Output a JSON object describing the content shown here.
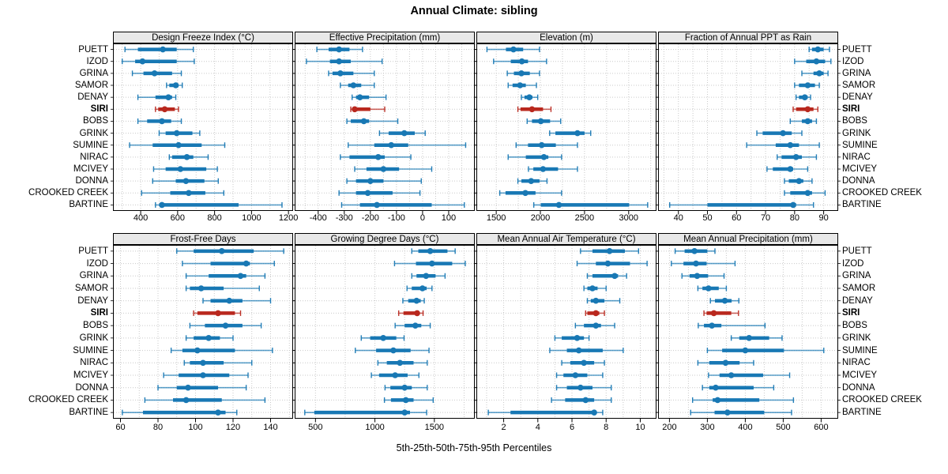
{
  "title": "Annual Climate: sibling",
  "caption": "5th-25th-50th-75th-95th Percentiles",
  "colors": {
    "series_blue": "#1878b4",
    "highlight_red": "#b9281e",
    "grid": "#c9c9c9",
    "strip_bg": "#e8e8e8",
    "border": "#000000"
  },
  "chart_data": {
    "type": "scatter",
    "subtype": "horizontal-percentile-intervals",
    "note": "5th-25th-50th-75th-95th percentile intervals per site; thick bar = 25th-75th, dot = median",
    "legend_position": "none",
    "grid": "dotted",
    "sites": [
      "PUETT",
      "IZOD",
      "GRINA",
      "SAMOR",
      "DENAY",
      "SIRI",
      "BOBS",
      "GRINK",
      "SUMINE",
      "NIRAC",
      "MCIVEY",
      "DONNA",
      "CROOKED CREEK",
      "BARTINE"
    ],
    "highlight_site": "SIRI",
    "panels": [
      {
        "title": "Design Freeze Index (°C)",
        "grid_row": 0,
        "grid_col": 0,
        "xlim": [
          250,
          1225
        ],
        "ticks": [
          400,
          600,
          800,
          1000,
          1200
        ],
        "minor_step": 100,
        "percentiles": [
          [
            315,
            385,
            520,
            595,
            685
          ],
          [
            300,
            370,
            410,
            595,
            690
          ],
          [
            355,
            415,
            475,
            570,
            620
          ],
          [
            540,
            555,
            590,
            605,
            625
          ],
          [
            385,
            480,
            550,
            570,
            590
          ],
          [
            480,
            495,
            530,
            585,
            605
          ],
          [
            385,
            435,
            515,
            565,
            620
          ],
          [
            500,
            535,
            595,
            680,
            720
          ],
          [
            340,
            465,
            605,
            730,
            855
          ],
          [
            555,
            570,
            650,
            685,
            765
          ],
          [
            470,
            535,
            615,
            755,
            815
          ],
          [
            465,
            590,
            645,
            745,
            820
          ],
          [
            405,
            560,
            660,
            750,
            850
          ],
          [
            480,
            505,
            515,
            930,
            1165
          ]
        ]
      },
      {
        "title": "Effective Precipitation (mm)",
        "grid_row": 0,
        "grid_col": 1,
        "xlim": [
          -490,
          200
        ],
        "ticks": [
          -400,
          -300,
          -200,
          -100,
          0,
          100
        ],
        "minor_step": 50,
        "percentiles": [
          [
            -405,
            -360,
            -320,
            -280,
            -230
          ],
          [
            -445,
            -355,
            -320,
            -275,
            -155
          ],
          [
            -360,
            -345,
            -315,
            -265,
            -185
          ],
          [
            -315,
            -285,
            -265,
            -235,
            -185
          ],
          [
            -270,
            -255,
            -240,
            -205,
            -140
          ],
          [
            -275,
            -265,
            -260,
            -200,
            -145
          ],
          [
            -290,
            -275,
            -225,
            -205,
            -95
          ],
          [
            -165,
            -130,
            -70,
            -30,
            10
          ],
          [
            -285,
            -185,
            -120,
            -55,
            165
          ],
          [
            -315,
            -280,
            -170,
            -145,
            -45
          ],
          [
            -260,
            -215,
            -150,
            -90,
            35
          ],
          [
            -290,
            -255,
            -200,
            -150,
            -5
          ],
          [
            -320,
            -255,
            -210,
            -115,
            -10
          ],
          [
            -310,
            -240,
            -175,
            35,
            160
          ]
        ]
      },
      {
        "title": "Elevation (m)",
        "grid_row": 0,
        "grid_col": 2,
        "xlim": [
          1275,
          3315
        ],
        "ticks": [
          1500,
          2000,
          2500,
          3000
        ],
        "minor_step": 250,
        "percentiles": [
          [
            1395,
            1610,
            1695,
            1805,
            1990
          ],
          [
            1470,
            1665,
            1790,
            1860,
            2070
          ],
          [
            1625,
            1700,
            1785,
            1880,
            1990
          ],
          [
            1635,
            1685,
            1770,
            1835,
            1955
          ],
          [
            1785,
            1820,
            1875,
            1910,
            1970
          ],
          [
            1745,
            1775,
            1905,
            2030,
            2120
          ],
          [
            1850,
            1905,
            2005,
            2110,
            2230
          ],
          [
            2105,
            2170,
            2420,
            2500,
            2570
          ],
          [
            1725,
            1860,
            2015,
            2175,
            2420
          ],
          [
            1635,
            1835,
            2040,
            2090,
            2240
          ],
          [
            1865,
            1920,
            2030,
            2200,
            2420
          ],
          [
            1745,
            1785,
            1895,
            1990,
            2075
          ],
          [
            1540,
            1605,
            1830,
            1945,
            2240
          ],
          [
            1925,
            2005,
            2210,
            3005,
            3215
          ]
        ]
      },
      {
        "title": "Fraction of Annual PPT as Rain",
        "grid_row": 0,
        "grid_col": 3,
        "xlim": [
          33,
          95
        ],
        "ticks": [
          40,
          50,
          60,
          70,
          80,
          90
        ],
        "minor_step": 5,
        "percentiles": [
          [
            85,
            86,
            88,
            90,
            92
          ],
          [
            80,
            84,
            87.5,
            90.5,
            92.5
          ],
          [
            82.5,
            86.5,
            88.5,
            90,
            91.5
          ],
          [
            80,
            81.5,
            84.5,
            87,
            88.5
          ],
          [
            80.5,
            81.5,
            83.5,
            84.5,
            85.5
          ],
          [
            79.5,
            80.5,
            84.5,
            86.5,
            88
          ],
          [
            78.5,
            82.5,
            84.5,
            86,
            87.5
          ],
          [
            67,
            69,
            76,
            79,
            82.5
          ],
          [
            63.5,
            73.5,
            78.5,
            81.5,
            88.5
          ],
          [
            74,
            75.5,
            80.5,
            82.5,
            87.5
          ],
          [
            70.5,
            72.5,
            78.5,
            79.5,
            84.5
          ],
          [
            76.5,
            78,
            81.5,
            83,
            86
          ],
          [
            76.5,
            78.5,
            84.5,
            86,
            90.5
          ],
          [
            37,
            50,
            79.5,
            80.5,
            86.5
          ]
        ]
      },
      {
        "title": "Frost-Free Days",
        "grid_row": 1,
        "grid_col": 0,
        "xlim": [
          56,
          152
        ],
        "ticks": [
          60,
          80,
          100,
          120,
          140
        ],
        "minor_step": 10,
        "percentiles": [
          [
            90,
            99,
            114,
            131,
            147
          ],
          [
            93,
            108,
            127,
            129,
            142
          ],
          [
            95,
            107,
            124,
            127,
            137
          ],
          [
            95,
            97,
            103,
            115,
            134
          ],
          [
            104,
            108,
            118,
            125,
            140
          ],
          [
            99,
            101,
            112,
            121,
            124
          ],
          [
            97,
            105,
            116,
            125,
            135
          ],
          [
            95,
            99,
            107,
            113,
            120
          ],
          [
            87,
            93,
            101,
            121,
            141
          ],
          [
            94,
            97,
            104,
            115,
            130
          ],
          [
            83,
            91,
            104,
            118,
            128
          ],
          [
            80,
            90,
            96,
            112,
            127
          ],
          [
            73,
            88,
            95,
            114,
            137
          ],
          [
            61,
            72,
            112,
            116,
            122
          ]
        ]
      },
      {
        "title": "Growing Degree Days (°C)",
        "grid_row": 1,
        "grid_col": 1,
        "xlim": [
          325,
          1840
        ],
        "ticks": [
          500,
          1000,
          1500
        ],
        "minor_step": 250,
        "percentiles": [
          [
            1310,
            1365,
            1465,
            1610,
            1675
          ],
          [
            1165,
            1345,
            1480,
            1650,
            1760
          ],
          [
            1310,
            1350,
            1430,
            1510,
            1590
          ],
          [
            1270,
            1310,
            1400,
            1435,
            1480
          ],
          [
            1235,
            1280,
            1350,
            1385,
            1415
          ],
          [
            1200,
            1240,
            1355,
            1375,
            1405
          ],
          [
            1170,
            1250,
            1340,
            1390,
            1465
          ],
          [
            885,
            960,
            1070,
            1180,
            1245
          ],
          [
            835,
            1010,
            1155,
            1300,
            1455
          ],
          [
            1025,
            1100,
            1210,
            1325,
            1440
          ],
          [
            970,
            1035,
            1170,
            1275,
            1370
          ],
          [
            1085,
            1130,
            1250,
            1310,
            1440
          ],
          [
            1080,
            1135,
            1260,
            1325,
            1490
          ],
          [
            410,
            490,
            1250,
            1295,
            1435
          ]
        ]
      },
      {
        "title": "Mean Annual Air Temperature (°C)",
        "grid_row": 1,
        "grid_col": 2,
        "xlim": [
          0.4,
          10.95
        ],
        "ticks": [
          2,
          4,
          6,
          8,
          10
        ],
        "minor_step": 1,
        "percentiles": [
          [
            6.5,
            7.2,
            8.2,
            9.1,
            9.9
          ],
          [
            6.3,
            7.4,
            8.1,
            9.4,
            10.4
          ],
          [
            6.9,
            7.2,
            8.5,
            8.7,
            9.2
          ],
          [
            6.7,
            6.9,
            7.2,
            7.5,
            8.0
          ],
          [
            6.9,
            7.1,
            7.4,
            7.9,
            8.8
          ],
          [
            6.8,
            6.9,
            7.4,
            7.6,
            7.9
          ],
          [
            6.2,
            6.7,
            7.4,
            7.7,
            8.5
          ],
          [
            5.0,
            5.4,
            6.3,
            6.7,
            7.0
          ],
          [
            4.7,
            5.7,
            6.4,
            7.8,
            9.0
          ],
          [
            5.4,
            5.9,
            6.7,
            7.3,
            7.9
          ],
          [
            5.1,
            5.5,
            6.2,
            6.9,
            7.8
          ],
          [
            5.1,
            5.7,
            6.5,
            7.2,
            8.3
          ],
          [
            4.8,
            5.6,
            6.8,
            7.3,
            8.3
          ],
          [
            1.1,
            2.4,
            7.3,
            7.4,
            7.8
          ]
        ]
      },
      {
        "title": "Mean Annual Precipitation (mm)",
        "grid_row": 1,
        "grid_col": 3,
        "xlim": [
          170,
          645
        ],
        "ticks": [
          200,
          300,
          400,
          500,
          600
        ],
        "minor_step": 50,
        "percentiles": [
          [
            215,
            240,
            266,
            300,
            320
          ],
          [
            205,
            237,
            270,
            298,
            373
          ],
          [
            233,
            253,
            273,
            302,
            344
          ],
          [
            275,
            287,
            303,
            330,
            350
          ],
          [
            308,
            320,
            346,
            364,
            383
          ],
          [
            291,
            298,
            317,
            363,
            382
          ],
          [
            276,
            291,
            312,
            337,
            452
          ],
          [
            363,
            384,
            410,
            463,
            497
          ],
          [
            300,
            339,
            400,
            502,
            607
          ],
          [
            275,
            305,
            348,
            385,
            422
          ],
          [
            303,
            332,
            363,
            447,
            517
          ],
          [
            287,
            305,
            322,
            422,
            475
          ],
          [
            261,
            314,
            327,
            437,
            527
          ],
          [
            256,
            319,
            353,
            450,
            522
          ]
        ]
      }
    ]
  }
}
